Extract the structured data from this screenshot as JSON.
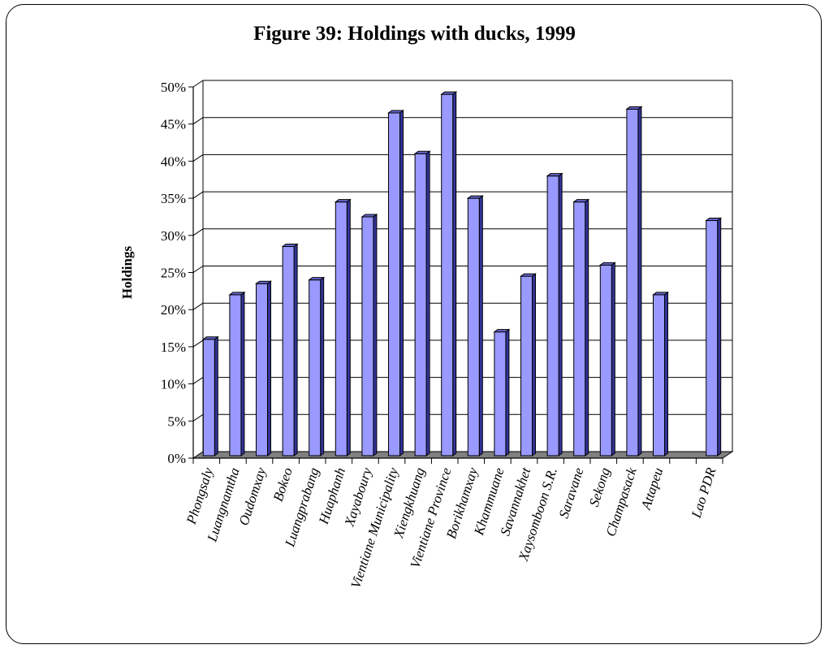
{
  "chart_data": {
    "type": "bar",
    "title": "Figure 39: Holdings with ducks, 1999",
    "xlabel": "",
    "ylabel": "Holdings",
    "ylim": [
      0,
      0.5
    ],
    "yticks": [
      "0%",
      "5%",
      "10%",
      "15%",
      "20%",
      "25%",
      "30%",
      "35%",
      "40%",
      "45%",
      "50%"
    ],
    "grid": true,
    "legend": "none",
    "bar_color": "#9999ff",
    "categories": [
      "Phongsaly",
      "Luangnamtha",
      "Oudomxay",
      "Bokeo",
      "Luangprabang",
      "Huaphanh",
      "Xayaboury",
      "Vientiane Municipality",
      "Xiengkhuang",
      "Vientiane Province",
      "Borikhamxay",
      "Khammuane",
      "Savannakhet",
      "Xaysomboon S.R.",
      "Saravane",
      "Sekong",
      "Champasack",
      "Attapeu",
      "",
      "Lao PDR"
    ],
    "values": [
      0.16,
      0.22,
      0.235,
      0.285,
      0.24,
      0.345,
      0.325,
      0.465,
      0.41,
      0.49,
      0.35,
      0.17,
      0.245,
      0.38,
      0.345,
      0.26,
      0.47,
      0.22,
      null,
      0.32
    ]
  }
}
